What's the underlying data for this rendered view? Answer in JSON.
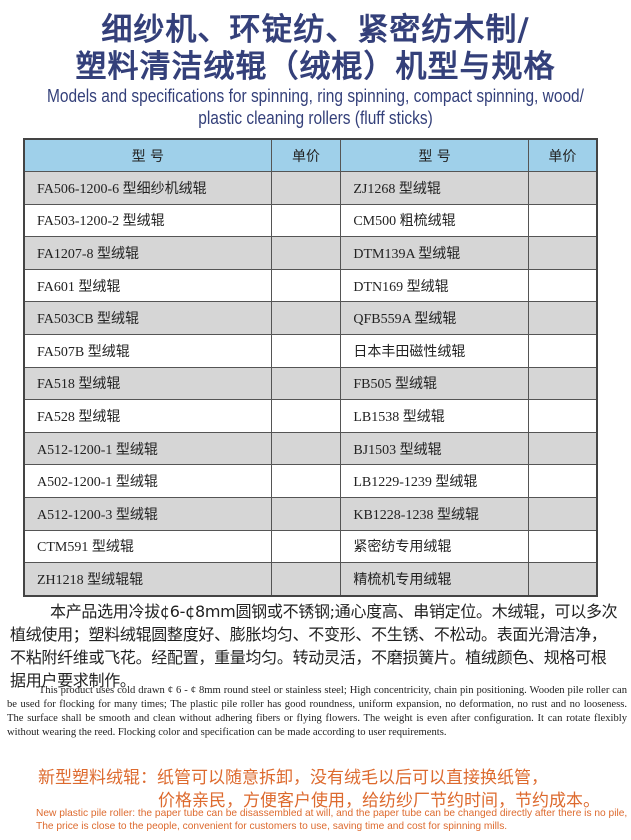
{
  "title": {
    "cn_line1": "细纱机、环锭纺、紧密纺木制/",
    "cn_line2": "塑料清洁绒辊（绒棍）机型与规格",
    "en_line1": "Models and specifications for spinning, ring spinning, compact spinning, wood/",
    "en_line2": "plastic cleaning rollers (fluff sticks)"
  },
  "table": {
    "headers": [
      "型 号",
      "单价",
      "型 号",
      "单价"
    ],
    "rows": [
      [
        "FA506-1200-6 型细纱机绒辊",
        "",
        "ZJ1268 型绒辊",
        ""
      ],
      [
        "FA503-1200-2 型绒辊",
        "",
        "CM500 粗梳绒辊",
        ""
      ],
      [
        "FA1207-8 型绒辊",
        "",
        "DTM139A 型绒辊",
        ""
      ],
      [
        "FA601 型绒辊",
        "",
        "DTN169 型绒辊",
        ""
      ],
      [
        "FA503CB 型绒辊",
        "",
        "QFB559A 型绒辊",
        ""
      ],
      [
        "FA507B 型绒辊",
        "",
        "日本丰田磁性绒辊",
        ""
      ],
      [
        "FA518 型绒辊",
        "",
        "FB505 型绒辊",
        ""
      ],
      [
        "FA528 型绒辊",
        "",
        "LB1538 型绒辊",
        ""
      ],
      [
        "A512-1200-1 型绒辊",
        "",
        "BJ1503 型绒辊",
        ""
      ],
      [
        "A502-1200-1 型绒辊",
        "",
        "LB1229-1239 型绒辊",
        ""
      ],
      [
        "A512-1200-3 型绒辊",
        "",
        "KB1228-1238 型绒辊",
        ""
      ],
      [
        "CTM591 型绒辊",
        "",
        "紧密纺专用绒辊",
        ""
      ],
      [
        "ZH1218 型绒辊辊",
        "",
        "精梳机专用绒辊",
        ""
      ]
    ]
  },
  "description": {
    "cn": "本产品选用冷拔¢6-¢8mm圆钢或不锈钢;通心度高、串销定位。木绒辊，可以多次植绒使用；塑料绒辊圆整度好、膨胀均匀、不变形、不生锈、不松动。表面光滑洁净，不粘附纤维或飞花。经配置，重量均匀。转动灵活，不磨损簧片。植绒颜色、规格可根据用户要求制作。",
    "en": "This product uses cold drawn ¢ 6 - ¢ 8mm round steel or stainless steel; High concentricity, chain pin positioning. Wooden pile roller can be used for flocking for many times; The plastic pile roller has good roundness, uniform expansion, no deformation, no rust and no looseness. The surface shall be smooth and clean without adhering fibers or flying flowers. The weight is even after configuration. It can rotate flexibly without wearing the reed. Flocking color and specification can be made according to user requirements."
  },
  "promo": {
    "cn_line1": "新型塑料绒辊：纸管可以随意拆卸，没有绒毛以后可以直接换纸管，",
    "cn_line2": "价格亲民，方便客户使用，给纺纱厂节约时间，节约成本。",
    "en_line1": "New plastic pile roller: the paper tube can be disassembled at will, and the paper tube can be changed directly after there is no pile,",
    "en_line2": "The price is close to the people, convenient for customers to use, saving time and cost for spinning mills."
  },
  "colors": {
    "title": "#34407a",
    "header_bg": "#9fd0ea",
    "row_alt": "#d6d6d6",
    "promo": "#dd6a2e"
  }
}
